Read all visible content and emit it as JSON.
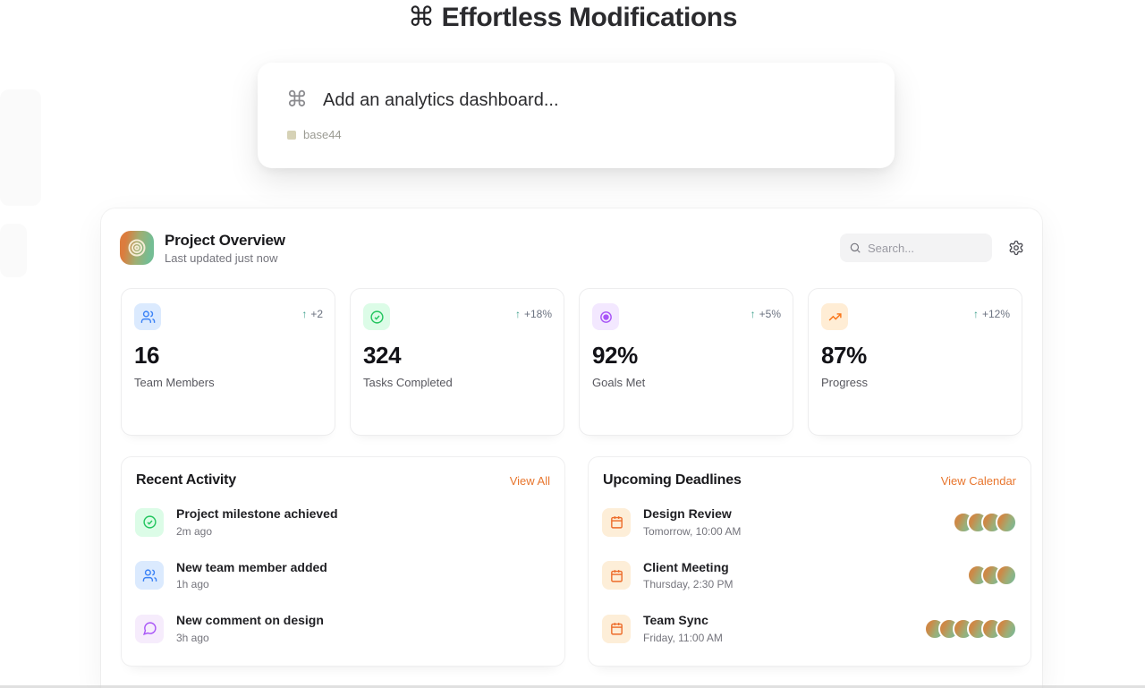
{
  "page": {
    "title_command_icon": "⌘",
    "title": "Effortless Modifications"
  },
  "command_palette": {
    "command_icon": "⌘",
    "prompt": "Add an analytics dashboard...",
    "brand": "base44"
  },
  "dashboard": {
    "app_title": "Project Overview",
    "subtitle": "Last updated just now",
    "search_placeholder": "Search...",
    "stats": [
      {
        "icon": "users-icon",
        "icon_color": "#3B82F6",
        "icon_bg": "#DBEAFE",
        "delta_arrow": "↑",
        "delta": "+2",
        "value": "16",
        "label": "Team Members"
      },
      {
        "icon": "check-circle-icon",
        "icon_color": "#22C55E",
        "icon_bg": "#DCFCE7",
        "delta_arrow": "↑",
        "delta": "+18%",
        "value": "324",
        "label": "Tasks Completed"
      },
      {
        "icon": "target-icon",
        "icon_color": "#A855F7",
        "icon_bg": "#F3E8FF",
        "delta_arrow": "↑",
        "delta": "+5%",
        "value": "92%",
        "label": "Goals Met"
      },
      {
        "icon": "trending-up-icon",
        "icon_color": "#F97316",
        "icon_bg": "#FFEDD5",
        "delta_arrow": "↑",
        "delta": "+12%",
        "value": "87%",
        "label": "Progress"
      }
    ],
    "recent_activity": {
      "title": "Recent Activity",
      "action_label": "View All",
      "items": [
        {
          "icon": "check-circle-icon",
          "title": "Project milestone achieved",
          "time": "2m ago"
        },
        {
          "icon": "users-icon",
          "title": "New team member added",
          "time": "1h ago"
        },
        {
          "icon": "comment-icon",
          "title": "New comment on design",
          "time": "3h ago"
        }
      ]
    },
    "upcoming_deadlines": {
      "title": "Upcoming Deadlines",
      "action_label": "View Calendar",
      "items": [
        {
          "icon": "calendar-icon",
          "title": "Design Review",
          "time": "Tomorrow, 10:00 AM",
          "avatars": 4
        },
        {
          "icon": "calendar-icon",
          "title": "Client Meeting",
          "time": "Thursday, 2:30 PM",
          "avatars": 3
        },
        {
          "icon": "calendar-icon",
          "title": "Team Sync",
          "time": "Friday, 11:00 AM",
          "avatars": 6
        }
      ]
    }
  },
  "colors": {
    "accent_link_orange": "#E8762E",
    "positive_delta_arrow": "#3D9F8C",
    "brand_square": "#D6D2B6",
    "app_icon_gradient": [
      "#DC7C3D",
      "#74BD94"
    ],
    "avatar_gradient": [
      "#CD8947",
      "#7CB794"
    ]
  }
}
